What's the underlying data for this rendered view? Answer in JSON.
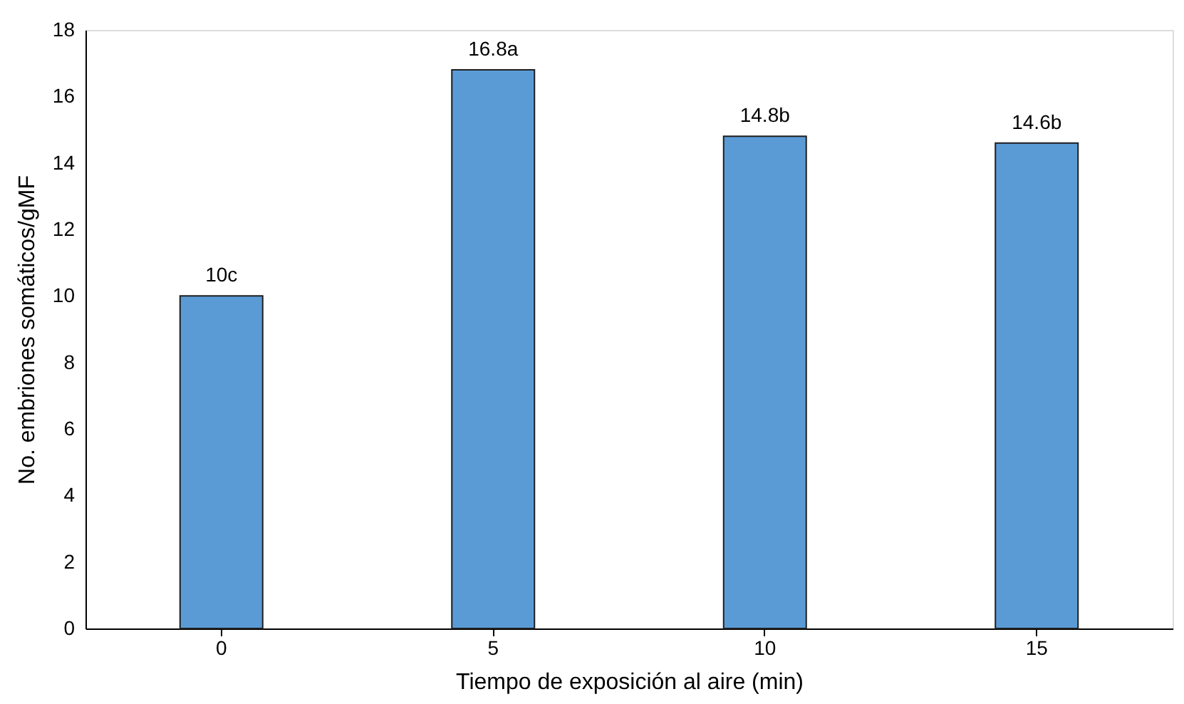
{
  "chart_data": {
    "type": "bar",
    "xlabel": "Tiempo de exposición al aire (min)",
    "ylabel": "No. embriones somáticos/gMF",
    "categories": [
      "0",
      "5",
      "10",
      "15"
    ],
    "values": [
      10,
      16.8,
      14.8,
      14.6
    ],
    "value_labels": [
      "10c",
      "16.8a",
      "14.8b",
      "14.6b"
    ],
    "color": "#5b9bd5",
    "ylim": [
      0,
      18
    ],
    "yticks": [
      0,
      2,
      4,
      6,
      8,
      10,
      12,
      14,
      16,
      18
    ],
    "grid": false
  }
}
